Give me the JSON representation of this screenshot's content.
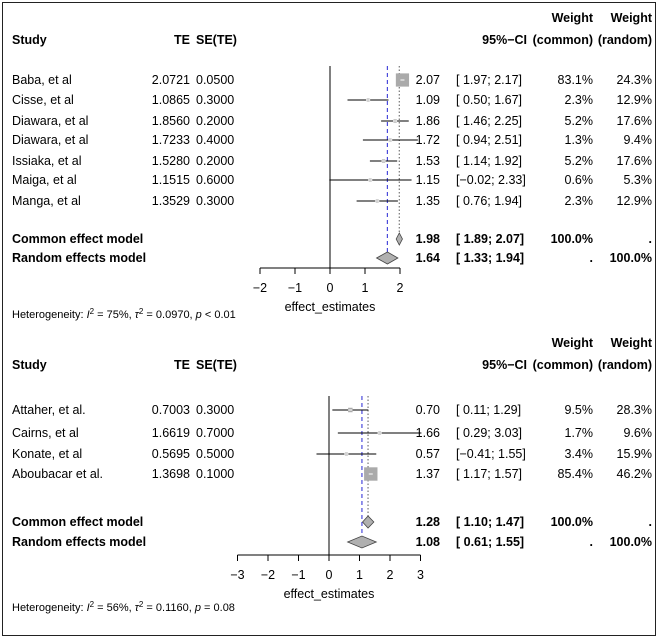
{
  "chart_data": [
    {
      "type": "forest",
      "headers": {
        "study": "Study",
        "te": "TE",
        "sete": "SE(TE)",
        "ci": "95%−CI",
        "weight_common_1": "Weight",
        "weight_common_2": "(common)",
        "weight_random_1": "Weight",
        "weight_random_2": "(random)"
      },
      "studies": [
        {
          "name": "Baba, et al",
          "te": "2.0721",
          "se": "0.0500",
          "est": "2.07",
          "ci_text": "[ 1.97; 2.17]",
          "lo": 1.97,
          "hi": 2.17,
          "w_common": "83.1%",
          "w_random": "24.3%",
          "w": 83.1
        },
        {
          "name": "Cisse, et al",
          "te": "1.0865",
          "se": "0.3000",
          "est": "1.09",
          "ci_text": "[ 0.50; 1.67]",
          "lo": 0.5,
          "hi": 1.67,
          "w_common": "2.3%",
          "w_random": "12.9%",
          "w": 2.3
        },
        {
          "name": "Diawara, et al",
          "te": "1.8560",
          "se": "0.2000",
          "est": "1.86",
          "ci_text": "[ 1.46; 2.25]",
          "lo": 1.46,
          "hi": 2.25,
          "w_common": "5.2%",
          "w_random": "17.6%",
          "w": 5.2
        },
        {
          "name": "Diawara, et al",
          "te": "1.7233",
          "se": "0.4000",
          "est": "1.72",
          "ci_text": "[ 0.94; 2.51]",
          "lo": 0.94,
          "hi": 2.51,
          "w_common": "1.3%",
          "w_random": "9.4%",
          "w": 1.3
        },
        {
          "name": "Issiaka, et al",
          "te": "1.5280",
          "se": "0.2000",
          "est": "1.53",
          "ci_text": "[ 1.14; 1.92]",
          "lo": 1.14,
          "hi": 1.92,
          "w_common": "5.2%",
          "w_random": "17.6%",
          "w": 5.2
        },
        {
          "name": "Maiga, et al",
          "te": "1.1515",
          "se": "0.6000",
          "est": "1.15",
          "ci_text": "[−0.02; 2.33]",
          "lo": -0.02,
          "hi": 2.33,
          "w_common": "0.6%",
          "w_random": "5.3%",
          "w": 0.6
        },
        {
          "name": "Manga, et al",
          "te": "1.3529",
          "se": "0.3000",
          "est": "1.35",
          "ci_text": "[ 0.76; 1.94]",
          "lo": 0.76,
          "hi": 1.94,
          "w_common": "2.3%",
          "w_random": "12.9%",
          "w": 2.3
        }
      ],
      "models": [
        {
          "name": "Common effect model",
          "est": "1.98",
          "ci_text": "[ 1.89; 2.07]",
          "value": 1.98,
          "lo": 1.89,
          "hi": 2.07,
          "w_common": "100.0%",
          "w_random": "."
        },
        {
          "name": "Random effects model",
          "est": "1.64",
          "ci_text": "[ 1.33; 1.94]",
          "value": 1.64,
          "lo": 1.33,
          "hi": 1.94,
          "w_common": ".",
          "w_random": "100.0%"
        }
      ],
      "axis": {
        "xlabel": "effect_estimates",
        "ticks": [
          "−2",
          "−1",
          "0",
          "1",
          "2"
        ],
        "tick_values": [
          -2,
          -1,
          0,
          1,
          2
        ],
        "xlim": [
          -2,
          2
        ]
      },
      "heterogeneity": {
        "prefix": "Heterogeneity: ",
        "i2_sym": "I",
        "i2_sup": "2",
        "i2_val": " = 75%, ",
        "tau_sym": "τ",
        "tau_sup": "2",
        "tau_val": " = 0.0970, ",
        "p_sym": "p",
        "p_val": " < 0.01"
      }
    },
    {
      "type": "forest",
      "headers": {
        "study": "Study",
        "te": "TE",
        "sete": "SE(TE)",
        "ci": "95%−CI",
        "weight_common_1": "Weight",
        "weight_common_2": "(common)",
        "weight_random_1": "Weight",
        "weight_random_2": "(random)"
      },
      "studies": [
        {
          "name": "Attaher, et al.",
          "te": "0.7003",
          "se": "0.3000",
          "est": "0.70",
          "ci_text": "[ 0.11; 1.29]",
          "lo": 0.11,
          "hi": 1.29,
          "w_common": "9.5%",
          "w_random": "28.3%",
          "w": 9.5
        },
        {
          "name": "Cairns, et al",
          "te": "1.6619",
          "se": "0.7000",
          "est": "1.66",
          "ci_text": "[ 0.29; 3.03]",
          "lo": 0.29,
          "hi": 3.03,
          "w_common": "1.7%",
          "w_random": "9.6%",
          "w": 1.7
        },
        {
          "name": "Konate, et al",
          "te": "0.5695",
          "se": "0.5000",
          "est": "0.57",
          "ci_text": "[−0.41; 1.55]",
          "lo": -0.41,
          "hi": 1.55,
          "w_common": "3.4%",
          "w_random": "15.9%",
          "w": 3.4
        },
        {
          "name": "Aboubacar et al.",
          "te": "1.3698",
          "se": "0.1000",
          "est": "1.37",
          "ci_text": "[ 1.17; 1.57]",
          "lo": 1.17,
          "hi": 1.57,
          "w_common": "85.4%",
          "w_random": "46.2%",
          "w": 85.4
        }
      ],
      "models": [
        {
          "name": "Common effect model",
          "est": "1.28",
          "ci_text": "[ 1.10; 1.47]",
          "value": 1.28,
          "lo": 1.1,
          "hi": 1.47,
          "w_common": "100.0%",
          "w_random": "."
        },
        {
          "name": "Random effects model",
          "est": "1.08",
          "ci_text": "[ 0.61; 1.55]",
          "value": 1.08,
          "lo": 0.61,
          "hi": 1.55,
          "w_common": ".",
          "w_random": "100.0%"
        }
      ],
      "axis": {
        "xlabel": "effect_estimates",
        "ticks": [
          "−3",
          "−2",
          "−1",
          "0",
          "1",
          "2",
          "3"
        ],
        "tick_values": [
          -3,
          -2,
          -1,
          0,
          1,
          2,
          3
        ],
        "xlim": [
          -3,
          3
        ]
      },
      "heterogeneity": {
        "prefix": "Heterogeneity: ",
        "i2_sym": "I",
        "i2_sup": "2",
        "i2_val": " = 56%, ",
        "tau_sym": "τ",
        "tau_sup": "2",
        "tau_val": " = 0.1160, ",
        "p_sym": "p",
        "p_val": " = 0.08"
      }
    }
  ],
  "colors": {
    "square": "#aaaaaa",
    "diamond": "#b0b0b0",
    "random_line": "#4a4adb",
    "common_line": "#777777",
    "line": "#000000"
  }
}
